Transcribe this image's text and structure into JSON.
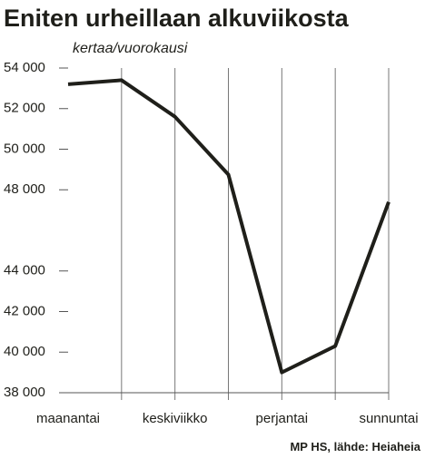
{
  "chart_data": {
    "type": "line",
    "title": "Eniten urheillaan alkuviikosta",
    "subtitle": "kertaa/vuorokausi",
    "source": "MP HS, lähde: Heiaheia",
    "categories": [
      "maanantai",
      null,
      "keskiviikko",
      null,
      "perjantai",
      null,
      "sunnuntai"
    ],
    "values": [
      53200,
      53400,
      51600,
      48750,
      39000,
      40300,
      47400
    ],
    "color": "#1f1f1a",
    "ylim": [
      38000,
      54000
    ],
    "yticks": [
      {
        "value": 38000,
        "label": "38 000"
      },
      {
        "value": 40000,
        "label": "40 000"
      },
      {
        "value": 42000,
        "label": "42 000"
      },
      {
        "value": 44000,
        "label": "44 000"
      },
      {
        "value": 48000,
        "label": "48 000"
      },
      {
        "value": 50000,
        "label": "50 000"
      },
      {
        "value": 52000,
        "label": "52 000"
      },
      {
        "value": 54000,
        "label": "54 000"
      }
    ],
    "grid": true
  }
}
